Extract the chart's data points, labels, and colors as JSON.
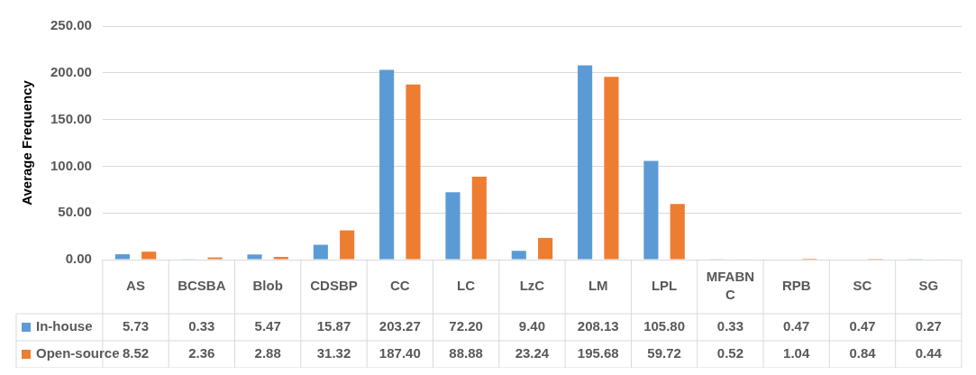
{
  "chart_data": {
    "type": "bar",
    "ylabel": "Average Frequency",
    "categories": [
      "AS",
      "BCSBA",
      "Blob",
      "CDSBP",
      "CC",
      "LC",
      "LzC",
      "LM",
      "LPL",
      "MFABNC",
      "RPB",
      "SC",
      "SG"
    ],
    "series": [
      {
        "name": "In-house",
        "color": "#5b9bd5",
        "values": [
          5.73,
          0.33,
          5.47,
          15.87,
          203.27,
          72.2,
          9.4,
          208.13,
          105.8,
          0.33,
          0.47,
          0.47,
          0.27
        ],
        "value_labels": [
          "5.73",
          "0.33",
          "5.47",
          "15.87",
          "203.27",
          "72.20",
          "9.40",
          "208.13",
          "105.80",
          "0.33",
          "0.47",
          "0.47",
          "0.27"
        ]
      },
      {
        "name": "Open-source",
        "color": "#ed7d31",
        "values": [
          8.52,
          2.36,
          2.88,
          31.32,
          187.4,
          88.88,
          23.24,
          195.68,
          59.72,
          0.52,
          1.04,
          0.84,
          0.44
        ],
        "value_labels": [
          "8.52",
          "2.36",
          "2.88",
          "31.32",
          "187.40",
          "88.88",
          "23.24",
          "195.68",
          "59.72",
          "0.52",
          "1.04",
          "0.84",
          "0.44"
        ]
      }
    ],
    "ylim": [
      0,
      250
    ],
    "yticks": [
      {
        "value": 0,
        "label": "0.00"
      },
      {
        "value": 50,
        "label": "50.00"
      },
      {
        "value": 100,
        "label": "100.00"
      },
      {
        "value": 150,
        "label": "150.00"
      },
      {
        "value": 200,
        "label": "200.00"
      },
      {
        "value": 250,
        "label": "250.00"
      }
    ],
    "grid": "y",
    "legend": "bottom"
  }
}
